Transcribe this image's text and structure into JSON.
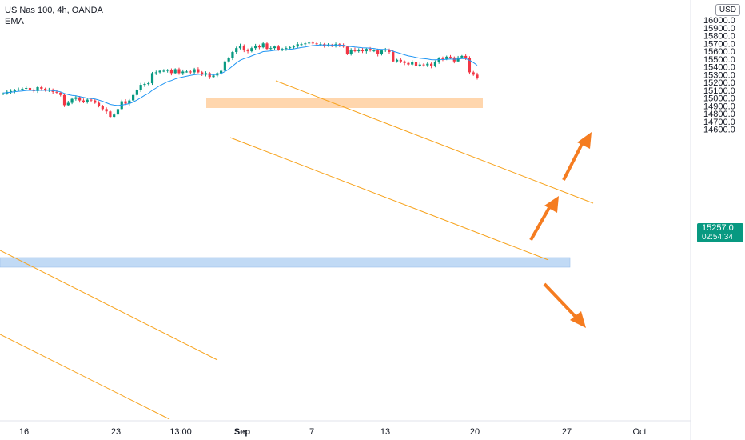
{
  "legend": {
    "symbol": "US Nas 100, 4h, OANDA",
    "indicator": "EMA"
  },
  "currency": "USD",
  "price_tag": {
    "price": "15257.0",
    "countdown": "02:54:34"
  },
  "colors": {
    "up": "#089981",
    "down": "#f23645",
    "ema": "#2196f3",
    "channel": "#f7a21b",
    "resistance_zone": "#ffcc99",
    "support_zone": "#bbd6f5",
    "arrow": "#f57c20"
  },
  "chart_data": {
    "type": "candlestick",
    "ylim": [
      14550,
      16050
    ],
    "yticks": [
      "14600.0",
      "14700.0",
      "14800.0",
      "14900.0",
      "15000.0",
      "15100.0",
      "15200.0",
      "15300.0",
      "15400.0",
      "15500.0",
      "15600.0",
      "15700.0",
      "15800.0",
      "15900.0",
      "16000.0"
    ],
    "xticks": [
      "16",
      "23",
      "13:00",
      "Sep",
      "7",
      "13",
      "20",
      "27",
      "Oct"
    ],
    "candles_close": [
      15060,
      15080,
      15090,
      15100,
      15110,
      15120,
      15130,
      15100,
      15090,
      15140,
      15120,
      15100,
      15110,
      15080,
      15070,
      15040,
      14910,
      14940,
      14990,
      15010,
      14970,
      14950,
      14980,
      14970,
      14940,
      14900,
      14860,
      14830,
      14760,
      14790,
      14860,
      14960,
      14930,
      14970,
      15040,
      15100,
      15170,
      15180,
      15190,
      15320,
      15330,
      15350,
      15350,
      15360,
      15320,
      15370,
      15320,
      15340,
      15340,
      15330,
      15370,
      15330,
      15300,
      15320,
      15270,
      15290,
      15320,
      15350,
      15470,
      15510,
      15590,
      15640,
      15670,
      15610,
      15600,
      15640,
      15670,
      15650,
      15700,
      15630,
      15640,
      15660,
      15620,
      15630,
      15640,
      15650,
      15660,
      15690,
      15690,
      15700,
      15710,
      15700,
      15690,
      15690,
      15670,
      15680,
      15670,
      15690,
      15680,
      15660,
      15570,
      15620,
      15600,
      15620,
      15600,
      15630,
      15610,
      15610,
      15560,
      15610,
      15620,
      15590,
      15470,
      15490,
      15470,
      15450,
      15430,
      15460,
      15410,
      15430,
      15420,
      15440,
      15410,
      15460,
      15510,
      15500,
      15530,
      15520,
      15470,
      15520,
      15540,
      15510,
      15330,
      15300,
      15257
    ],
    "ema_points": [
      15065,
      15070,
      15075,
      15082,
      15088,
      15092,
      15098,
      15100,
      15098,
      15100,
      15102,
      15100,
      15100,
      15096,
      15090,
      15080,
      15060,
      15045,
      15035,
      15030,
      15020,
      15010,
      15000,
      14995,
      14988,
      14975,
      14960,
      14940,
      14920,
      14910,
      14905,
      14910,
      14920,
      14930,
      14950,
      14975,
      15005,
      15035,
      15060,
      15100,
      15130,
      15160,
      15185,
      15210,
      15225,
      15245,
      15260,
      15270,
      15280,
      15290,
      15300,
      15305,
      15305,
      15310,
      15305,
      15300,
      15305,
      15315,
      15340,
      15370,
      15410,
      15450,
      15485,
      15505,
      15520,
      15540,
      15560,
      15575,
      15595,
      15600,
      15605,
      15612,
      15615,
      15618,
      15620,
      15625,
      15630,
      15640,
      15648,
      15655,
      15665,
      15672,
      15676,
      15680,
      15680,
      15680,
      15678,
      15678,
      15678,
      15676,
      15665,
      15660,
      15654,
      15650,
      15645,
      15643,
      15638,
      15635,
      15626,
      15624,
      15622,
      15618,
      15600,
      15585,
      15570,
      15555,
      15540,
      15532,
      15520,
      15512,
      15505,
      15500,
      15492,
      15490,
      15492,
      15493,
      15497,
      15500,
      15497,
      15500,
      15505,
      15505,
      15485,
      15455,
      15420
    ]
  }
}
